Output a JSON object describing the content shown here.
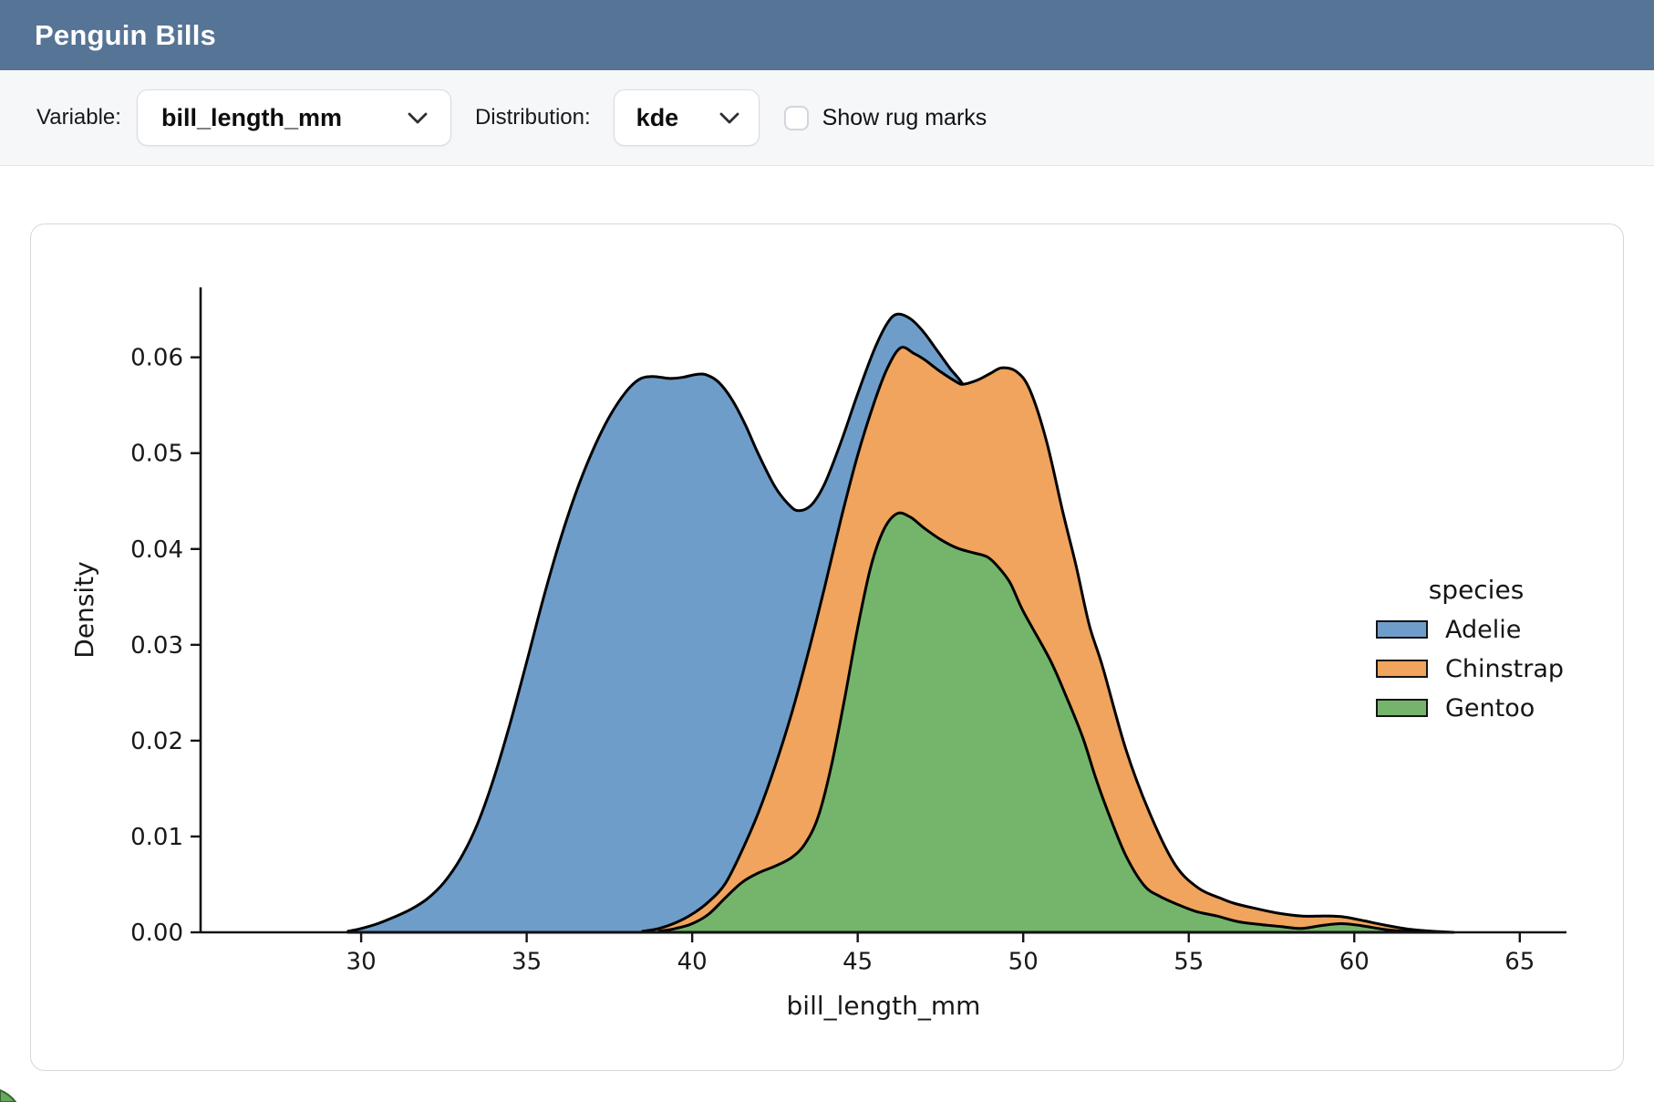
{
  "header": {
    "title": "Penguin Bills",
    "bg_color": "#567496"
  },
  "toolbar": {
    "variable_label": "Variable:",
    "variable_value": "bill_length_mm",
    "distribution_label": "Distribution:",
    "distribution_value": "kde",
    "rug_label": "Show rug marks",
    "rug_checked": false
  },
  "chart_data": {
    "type": "area",
    "subtype": "kde-density",
    "title": "",
    "xlabel": "bill_length_mm",
    "ylabel": "Density",
    "xlim": [
      25.15,
      66.41
    ],
    "ylim": [
      0,
      0.0673
    ],
    "x_ticks": [
      30,
      35,
      40,
      45,
      50,
      55,
      60,
      65
    ],
    "y_tick_values": [
      0,
      0.01,
      0.02,
      0.03,
      0.04,
      0.05,
      0.06
    ],
    "y_tick_labels": [
      "0.00",
      "0.01",
      "0.02",
      "0.03",
      "0.04",
      "0.05",
      "0.06"
    ],
    "grid": false,
    "legend": {
      "title": "species",
      "position": "center-right"
    },
    "outline_color": "#000000",
    "series": [
      {
        "name": "Adelie",
        "color": "#6f9dca",
        "points": [
          [
            29.6,
            0.0001
          ],
          [
            30,
            0.0004
          ],
          [
            30.5,
            0.0009
          ],
          [
            31,
            0.0016
          ],
          [
            31.5,
            0.0024
          ],
          [
            32,
            0.0035
          ],
          [
            32.5,
            0.0052
          ],
          [
            33,
            0.0077
          ],
          [
            33.5,
            0.0112
          ],
          [
            34,
            0.016
          ],
          [
            34.5,
            0.0218
          ],
          [
            35,
            0.0282
          ],
          [
            35.5,
            0.0348
          ],
          [
            36,
            0.0408
          ],
          [
            36.5,
            0.046
          ],
          [
            37,
            0.0503
          ],
          [
            37.5,
            0.0538
          ],
          [
            38,
            0.0564
          ],
          [
            38.4,
            0.0577
          ],
          [
            38.8,
            0.058
          ],
          [
            39.3,
            0.0578
          ],
          [
            39.7,
            0.0579
          ],
          [
            40.1,
            0.0582
          ],
          [
            40.4,
            0.0582
          ],
          [
            40.8,
            0.0574
          ],
          [
            41.2,
            0.0556
          ],
          [
            41.6,
            0.053
          ],
          [
            42,
            0.0499
          ],
          [
            42.5,
            0.0465
          ],
          [
            42.9,
            0.0447
          ],
          [
            43.2,
            0.044
          ],
          [
            43.6,
            0.0446
          ],
          [
            44,
            0.0468
          ],
          [
            44.5,
            0.0512
          ],
          [
            45,
            0.0562
          ],
          [
            45.5,
            0.0608
          ],
          [
            45.9,
            0.0636
          ],
          [
            46.2,
            0.0645
          ],
          [
            46.6,
            0.064
          ],
          [
            47,
            0.0626
          ],
          [
            47.4,
            0.0607
          ],
          [
            47.8,
            0.0588
          ],
          [
            48.2,
            0.057
          ],
          [
            48.6,
            0.0535
          ],
          [
            49,
            0.048
          ],
          [
            49.5,
            0.0395
          ],
          [
            50,
            0.03
          ],
          [
            50.5,
            0.0208
          ],
          [
            51,
            0.0128
          ],
          [
            51.5,
            0.007
          ],
          [
            52,
            0.0034
          ],
          [
            52.5,
            0.0015
          ],
          [
            53,
            0.0006
          ],
          [
            53.6,
            0.0002
          ],
          [
            54,
            0
          ]
        ]
      },
      {
        "name": "Chinstrap",
        "color": "#f0a45d",
        "points": [
          [
            38.5,
            0.0001
          ],
          [
            39,
            0.0004
          ],
          [
            39.5,
            0.001
          ],
          [
            40,
            0.0019
          ],
          [
            40.5,
            0.0032
          ],
          [
            41,
            0.0051
          ],
          [
            41.5,
            0.0085
          ],
          [
            42,
            0.0125
          ],
          [
            42.5,
            0.0173
          ],
          [
            43,
            0.0228
          ],
          [
            43.5,
            0.0291
          ],
          [
            44,
            0.036
          ],
          [
            44.5,
            0.0432
          ],
          [
            45,
            0.0498
          ],
          [
            45.5,
            0.0553
          ],
          [
            45.9,
            0.0589
          ],
          [
            46.3,
            0.061
          ],
          [
            46.7,
            0.0604
          ],
          [
            47,
            0.0598
          ],
          [
            47.5,
            0.0585
          ],
          [
            48,
            0.0574
          ],
          [
            48.2,
            0.0572
          ],
          [
            48.6,
            0.0576
          ],
          [
            49,
            0.0583
          ],
          [
            49.35,
            0.0589
          ],
          [
            49.8,
            0.0585
          ],
          [
            50.2,
            0.0566
          ],
          [
            50.7,
            0.0513
          ],
          [
            51.2,
            0.0438
          ],
          [
            51.6,
            0.0382
          ],
          [
            52,
            0.032
          ],
          [
            52.4,
            0.0277
          ],
          [
            53.1,
            0.0191
          ],
          [
            53.85,
            0.0122
          ],
          [
            54.6,
            0.007
          ],
          [
            55.3,
            0.0046
          ],
          [
            56,
            0.0035
          ],
          [
            56.4,
            0.003
          ],
          [
            57,
            0.0025
          ],
          [
            57.7,
            0.002
          ],
          [
            58.4,
            0.0017
          ],
          [
            59.1,
            0.0017
          ],
          [
            59.7,
            0.0016
          ],
          [
            60.3,
            0.0012
          ],
          [
            61,
            0.0007
          ],
          [
            61.7,
            0.0003
          ],
          [
            62.4,
            0.0001
          ],
          [
            63,
            0
          ]
        ]
      },
      {
        "name": "Gentoo",
        "color": "#75b56b",
        "points": [
          [
            39,
            0.0001
          ],
          [
            39.5,
            0.0004
          ],
          [
            40,
            0.0009
          ],
          [
            40.5,
            0.0019
          ],
          [
            41,
            0.0036
          ],
          [
            41.5,
            0.0052
          ],
          [
            42,
            0.0062
          ],
          [
            42.5,
            0.0069
          ],
          [
            43,
            0.0078
          ],
          [
            43.4,
            0.0092
          ],
          [
            43.8,
            0.012
          ],
          [
            44.2,
            0.0173
          ],
          [
            44.6,
            0.0243
          ],
          [
            45,
            0.0318
          ],
          [
            45.4,
            0.0382
          ],
          [
            45.8,
            0.0421
          ],
          [
            46.2,
            0.0437
          ],
          [
            46.6,
            0.0433
          ],
          [
            47,
            0.0422
          ],
          [
            47.5,
            0.041
          ],
          [
            48,
            0.0401
          ],
          [
            48.5,
            0.0396
          ],
          [
            48.9,
            0.0392
          ],
          [
            49.2,
            0.0383
          ],
          [
            49.6,
            0.0365
          ],
          [
            50,
            0.0335
          ],
          [
            50.8,
            0.0285
          ],
          [
            51.3,
            0.0246
          ],
          [
            51.8,
            0.0203
          ],
          [
            52.2,
            0.016
          ],
          [
            52.6,
            0.0122
          ],
          [
            53.1,
            0.008
          ],
          [
            53.65,
            0.0049
          ],
          [
            54.1,
            0.0038
          ],
          [
            54.6,
            0.003
          ],
          [
            55.2,
            0.0022
          ],
          [
            55.85,
            0.0017
          ],
          [
            56.5,
            0.0011
          ],
          [
            57.2,
            0.0008
          ],
          [
            57.8,
            0.0006
          ],
          [
            58.4,
            0.0004
          ],
          [
            59,
            0.0007
          ],
          [
            59.6,
            0.0009
          ],
          [
            60.2,
            0.0007
          ],
          [
            60.9,
            0.0003
          ],
          [
            61.5,
            0.0001
          ],
          [
            62.2,
            0
          ]
        ]
      }
    ]
  }
}
